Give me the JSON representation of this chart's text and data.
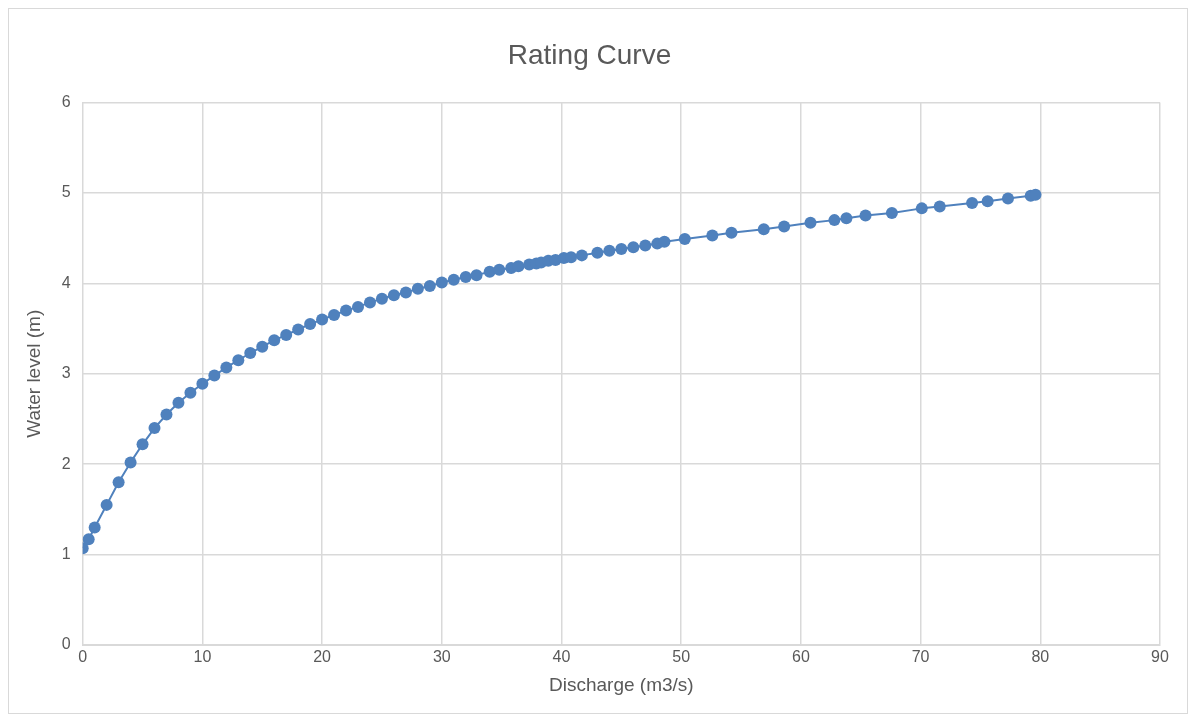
{
  "chart_data": {
    "type": "line",
    "title": "Rating Curve",
    "xlabel": "Discharge (m3/s)",
    "ylabel": "Water level (m)",
    "marker": "circle",
    "line_style": "solid",
    "grid": true,
    "legend": false,
    "xlim": [
      0,
      90
    ],
    "xticks": [
      0,
      10,
      20,
      30,
      40,
      50,
      60,
      70,
      80,
      90
    ],
    "ylim": [
      0,
      6
    ],
    "yticks": [
      0,
      1,
      2,
      3,
      4,
      5,
      6
    ],
    "series": [
      {
        "color": "#4f81bd",
        "x": [
          0,
          0.5,
          1,
          2,
          3,
          4,
          5,
          6,
          7,
          8,
          9,
          10,
          11,
          12,
          13,
          14,
          15,
          16,
          17,
          18,
          19,
          20,
          21,
          22,
          23,
          24,
          25,
          26,
          27,
          28,
          29,
          30,
          31,
          32,
          32.9,
          34,
          34.8,
          35.8,
          36.4,
          37.3,
          37.9,
          38.3,
          38.9,
          39.5,
          40.2,
          40.8,
          41.7,
          43,
          44,
          45,
          46,
          47,
          48,
          48.6,
          50.3,
          52.6,
          54.2,
          56.9,
          58.6,
          60.8,
          62.8,
          63.8,
          65.4,
          67.6,
          70.1,
          71.6,
          74.3,
          75.6,
          77.3,
          79.2,
          79.6
        ],
        "values": [
          1.07,
          1.17,
          1.3,
          1.55,
          1.8,
          2.02,
          2.22,
          2.4,
          2.55,
          2.68,
          2.79,
          2.89,
          2.98,
          3.07,
          3.15,
          3.23,
          3.3,
          3.37,
          3.43,
          3.49,
          3.55,
          3.6,
          3.65,
          3.7,
          3.74,
          3.79,
          3.83,
          3.87,
          3.9,
          3.94,
          3.97,
          4.01,
          4.04,
          4.07,
          4.09,
          4.13,
          4.15,
          4.17,
          4.19,
          4.21,
          4.22,
          4.23,
          4.25,
          4.26,
          4.28,
          4.29,
          4.31,
          4.34,
          4.36,
          4.38,
          4.4,
          4.42,
          4.44,
          4.46,
          4.49,
          4.53,
          4.56,
          4.6,
          4.63,
          4.67,
          4.7,
          4.72,
          4.75,
          4.78,
          4.83,
          4.85,
          4.89,
          4.91,
          4.94,
          4.97,
          4.98
        ]
      }
    ]
  }
}
